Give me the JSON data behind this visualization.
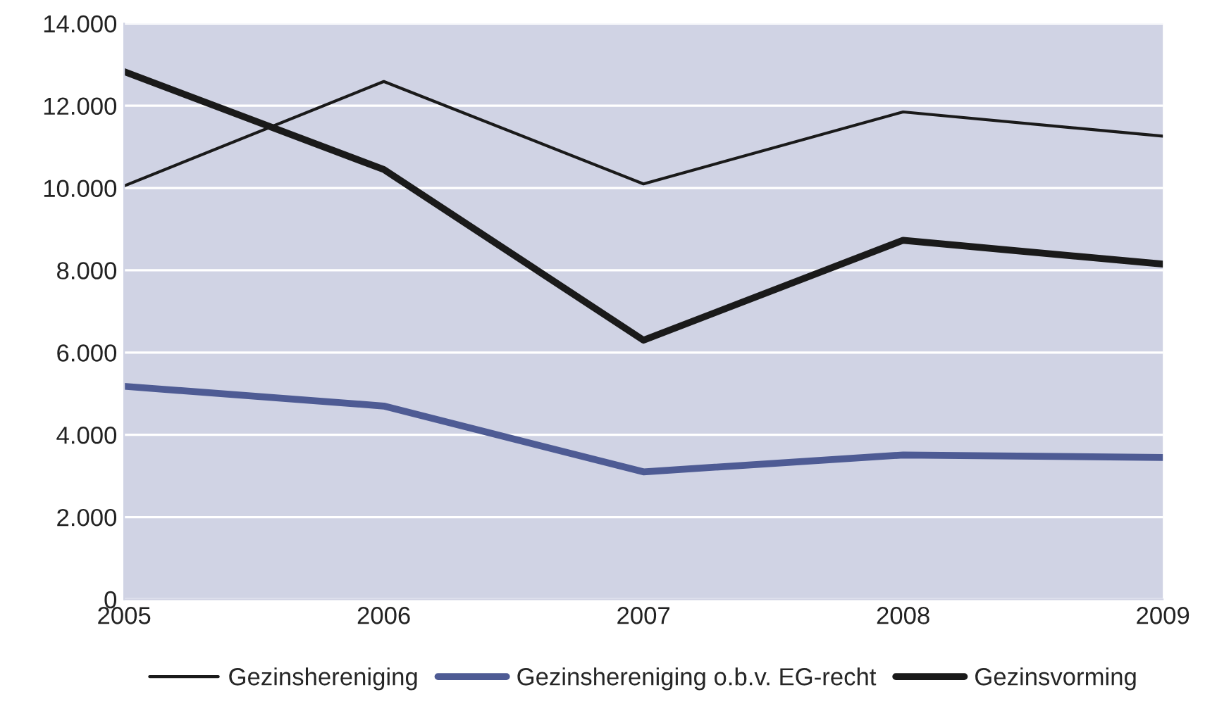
{
  "chart_data": {
    "type": "line",
    "x": [
      2005,
      2006,
      2007,
      2008,
      2009
    ],
    "series": [
      {
        "name": "Gezinshereniging",
        "color": "#1a1a1a",
        "values": [
          10050,
          12590,
          10100,
          11850,
          11260
        ]
      },
      {
        "name": "Gezinshereniging o.b.v. EG-recht",
        "color": "#4e5b94",
        "values": [
          5180,
          4700,
          3100,
          3510,
          3450
        ]
      },
      {
        "name": "Gezinsvorming",
        "color": "#1a1a1a",
        "values": [
          12830,
          10450,
          6300,
          8730,
          8150
        ]
      }
    ],
    "xlim": [
      2005,
      2009
    ],
    "xticks": [
      2005,
      2006,
      2007,
      2008,
      2009
    ],
    "ylim": [
      0,
      14000
    ],
    "yticks": [
      {
        "value": 0,
        "label": "0"
      },
      {
        "value": 2000,
        "label": "2.000"
      },
      {
        "value": 4000,
        "label": "4.000"
      },
      {
        "value": 6000,
        "label": "6.000"
      },
      {
        "value": 8000,
        "label": "8.000"
      },
      {
        "value": 10000,
        "label": "10.000"
      },
      {
        "value": 12000,
        "label": "12.000"
      },
      {
        "value": 14000,
        "label": "14.000"
      }
    ],
    "grid": "y",
    "legend": "bottom",
    "marker": "none",
    "line_style": "solid"
  }
}
